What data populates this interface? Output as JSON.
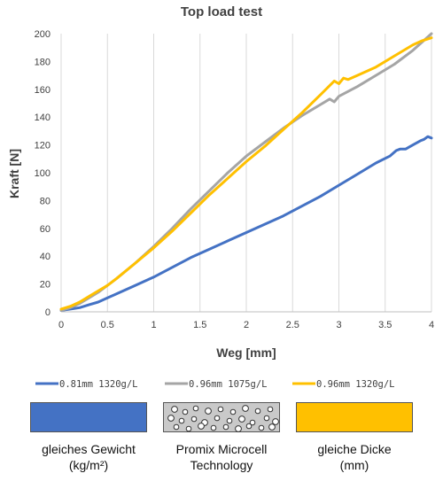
{
  "chart_data": {
    "type": "line",
    "title": "Top load test",
    "xlabel": "Weg [mm]",
    "ylabel": "Kraft [N]",
    "xlim": [
      0,
      4
    ],
    "ylim": [
      0,
      200
    ],
    "xticks": [
      "0",
      "0.5",
      "1",
      "1.5",
      "2",
      "2.5",
      "3",
      "3.5",
      "4"
    ],
    "yticks": [
      "0",
      "20",
      "40",
      "60",
      "80",
      "100",
      "120",
      "140",
      "160",
      "180",
      "200"
    ],
    "grid": "vertical",
    "legend_position": "bottom",
    "series": [
      {
        "name": "0.81mm 1320g/L",
        "color": "#4472C4",
        "x": [
          0,
          0.1,
          0.2,
          0.3,
          0.4,
          0.5,
          0.6,
          0.8,
          1.0,
          1.2,
          1.4,
          1.6,
          1.8,
          2.0,
          2.2,
          2.4,
          2.6,
          2.8,
          3.0,
          3.2,
          3.4,
          3.55,
          3.62,
          3.66,
          3.72,
          3.8,
          3.88,
          3.92,
          3.96,
          4.0
        ],
        "y": [
          1,
          2,
          3,
          5,
          7,
          10,
          13,
          19,
          25,
          32,
          39,
          45,
          51,
          57,
          63,
          69,
          76,
          83,
          91,
          99,
          107,
          112,
          116,
          117,
          117,
          120,
          123,
          124,
          126,
          125
        ]
      },
      {
        "name": "0.96mm 1075g/L",
        "color": "#A5A5A5",
        "x": [
          0,
          0.1,
          0.2,
          0.3,
          0.4,
          0.5,
          0.6,
          0.8,
          1.0,
          1.2,
          1.4,
          1.6,
          1.8,
          2.0,
          2.2,
          2.4,
          2.6,
          2.8,
          2.9,
          2.95,
          3.0,
          3.2,
          3.4,
          3.6,
          3.8,
          4.0
        ],
        "y": [
          1,
          3,
          6,
          10,
          14,
          19,
          24,
          35,
          47,
          60,
          74,
          87,
          100,
          112,
          122,
          132,
          141,
          149,
          153,
          151,
          155,
          162,
          170,
          178,
          188,
          200
        ]
      },
      {
        "name": "0.96mm 1320g/L",
        "color": "#FFC000",
        "x": [
          0,
          0.1,
          0.2,
          0.3,
          0.4,
          0.5,
          0.6,
          0.8,
          1.0,
          1.2,
          1.4,
          1.6,
          1.8,
          2.0,
          2.2,
          2.4,
          2.6,
          2.8,
          2.95,
          3.0,
          3.05,
          3.1,
          3.2,
          3.4,
          3.6,
          3.8,
          3.9,
          4.0
        ],
        "y": [
          2,
          4,
          7,
          11,
          15,
          19,
          24,
          35,
          46,
          58,
          71,
          84,
          96,
          108,
          119,
          131,
          143,
          156,
          166,
          164,
          168,
          167,
          170,
          176,
          184,
          192,
          195,
          197
        ]
      }
    ]
  },
  "boxes": [
    {
      "label_line1": "gleiches Gewicht",
      "label_line2": "(kg/m²)",
      "color": "#4472C4"
    },
    {
      "label_line1": "Promix Microcell",
      "label_line2": "Technology",
      "color": "#C9C9C9"
    },
    {
      "label_line1": "gleiche Dicke",
      "label_line2": "(mm)",
      "color": "#FFC000"
    }
  ]
}
